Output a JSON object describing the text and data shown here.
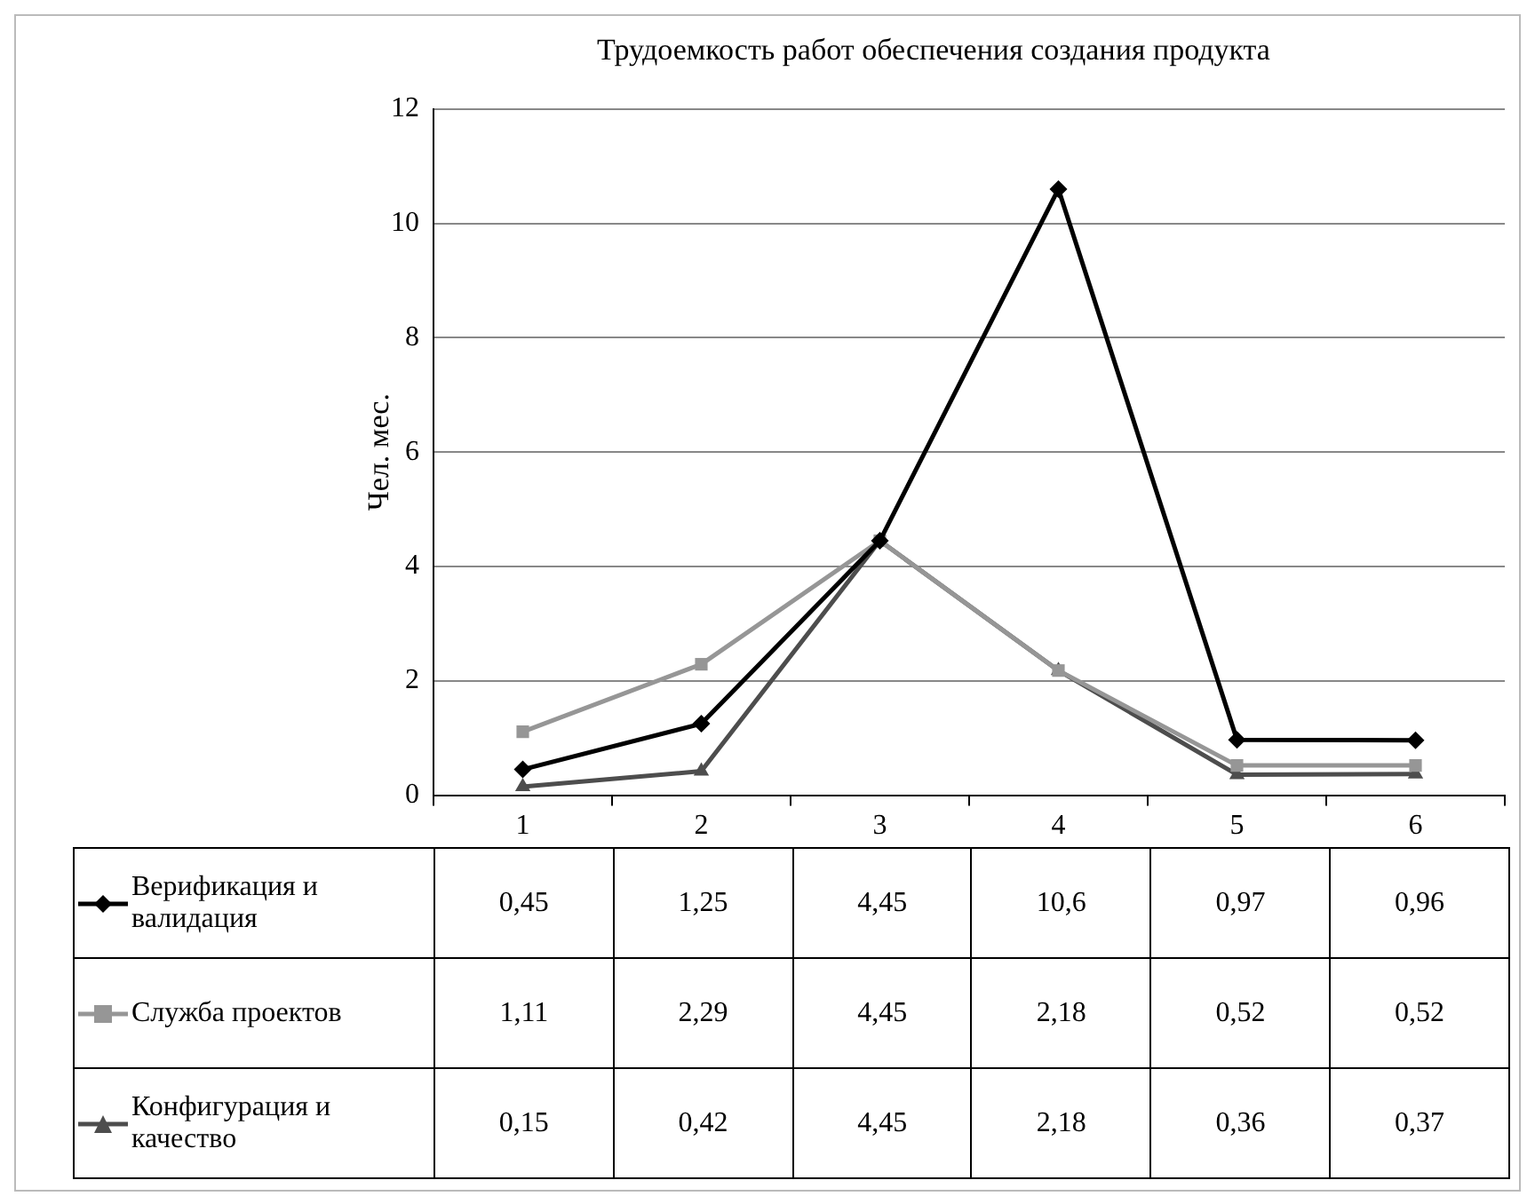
{
  "chart_data": {
    "type": "line",
    "title": "Трудоемкость работ обеспечения создания продукта",
    "ylabel": "Чел. мес.",
    "categories": [
      "1",
      "2",
      "3",
      "4",
      "5",
      "6"
    ],
    "series": [
      {
        "name": "Верификация и валидация",
        "color": "#000000",
        "marker": "diamond",
        "values": [
          0.45,
          1.25,
          4.45,
          10.6,
          0.97,
          0.96
        ],
        "value_labels": [
          "0,45",
          "1,25",
          "4,45",
          "10,6",
          "0,97",
          "0,96"
        ]
      },
      {
        "name": "Служба проектов",
        "color": "#969696",
        "marker": "square",
        "values": [
          1.11,
          2.29,
          4.45,
          2.18,
          0.52,
          0.52
        ],
        "value_labels": [
          "1,11",
          "2,29",
          "4,45",
          "2,18",
          "0,52",
          "0,52"
        ]
      },
      {
        "name": "Конфигурация и качество",
        "color": "#4d4d4d",
        "marker": "triangle",
        "values": [
          0.15,
          0.42,
          4.45,
          2.18,
          0.36,
          0.37
        ],
        "value_labels": [
          "0,15",
          "0,42",
          "4,45",
          "2,18",
          "0,36",
          "0,37"
        ]
      }
    ],
    "ylim": [
      0,
      12
    ],
    "yticks": [
      0,
      2,
      4,
      6,
      8,
      10,
      12
    ],
    "grid": "y",
    "legend": "bottom"
  }
}
